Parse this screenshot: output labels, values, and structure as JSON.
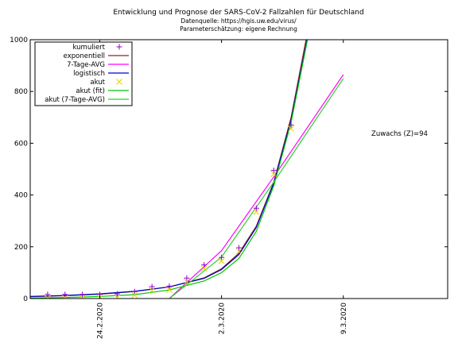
{
  "chart_data": {
    "type": "line",
    "title": "Entwicklung und Prognose der SARS-CoV-2 Fallzahlen für Deutschland",
    "subtitle_lines": [
      "Datenquelle: https://hgis.uw.edu/virus/",
      "Parameterschätzung: eigene Rechnung"
    ],
    "annotation": "Zuwachs (Z)=94",
    "xlim": [
      "2020-02-20",
      "2020-03-15"
    ],
    "ylim": [
      0,
      1000
    ],
    "y_ticks": [
      0,
      200,
      400,
      600,
      800,
      1000
    ],
    "x_ticks": [
      "24.2.2020",
      "2.3.2020",
      "9.3.2020"
    ],
    "legend_position": "top-left",
    "grid": false,
    "series": [
      {
        "name": "kumuliert",
        "style": "points",
        "marker": "plus",
        "color": "#9400d3",
        "x": [
          "2020-02-21",
          "2020-02-22",
          "2020-02-23",
          "2020-02-24",
          "2020-02-25",
          "2020-02-26",
          "2020-02-27",
          "2020-02-28",
          "2020-02-29",
          "2020-03-01",
          "2020-03-02",
          "2020-03-03",
          "2020-03-04",
          "2020-03-05",
          "2020-03-06"
        ],
        "y": [
          16,
          16,
          16,
          16,
          18,
          27,
          46,
          48,
          79,
          130,
          159,
          196,
          349,
          495,
          670
        ]
      },
      {
        "name": "exponentiell",
        "style": "line",
        "color": "#8b2a1a",
        "x": [
          "2020-02-20",
          "2020-02-22",
          "2020-02-24",
          "2020-02-26",
          "2020-02-28",
          "2020-03-01",
          "2020-03-02",
          "2020-03-03",
          "2020-03-04",
          "2020-03-05",
          "2020-03-06",
          "2020-03-07"
        ],
        "y": [
          7,
          11,
          17,
          27,
          45,
          80,
          115,
          175,
          280,
          450,
          700,
          1050
        ]
      },
      {
        "name": "7-Tage-AVG",
        "style": "line",
        "color": "#ff00ff",
        "x": [
          "2020-02-28",
          "2020-03-02",
          "2020-03-05",
          "2020-03-09"
        ],
        "y": [
          0,
          185,
          470,
          865
        ]
      },
      {
        "name": "logistisch",
        "style": "line",
        "color": "#0000cd",
        "x": [
          "2020-02-20",
          "2020-02-22",
          "2020-02-24",
          "2020-02-26",
          "2020-02-28",
          "2020-03-01",
          "2020-03-02",
          "2020-03-03",
          "2020-03-04",
          "2020-03-05",
          "2020-03-06",
          "2020-03-07"
        ],
        "y": [
          8,
          12,
          18,
          28,
          45,
          78,
          112,
          170,
          275,
          445,
          690,
          1030
        ]
      },
      {
        "name": "akut",
        "style": "points",
        "marker": "x",
        "color": "#e8d000",
        "x": [
          "2020-02-21",
          "2020-02-22",
          "2020-02-23",
          "2020-02-24",
          "2020-02-25",
          "2020-02-26",
          "2020-02-27",
          "2020-02-28",
          "2020-02-29",
          "2020-03-01",
          "2020-03-02",
          "2020-03-03",
          "2020-03-04",
          "2020-03-05",
          "2020-03-06"
        ],
        "y": [
          2,
          2,
          2,
          2,
          4,
          13,
          32,
          34,
          65,
          116,
          145,
          182,
          335,
          481,
          656
        ]
      },
      {
        "name": "akut (fit)",
        "style": "line",
        "color": "#00c800",
        "x": [
          "2020-02-20",
          "2020-02-22",
          "2020-02-24",
          "2020-02-26",
          "2020-02-28",
          "2020-03-01",
          "2020-03-02",
          "2020-03-03",
          "2020-03-04",
          "2020-03-05",
          "2020-03-06",
          "2020-03-07"
        ],
        "y": [
          2,
          4,
          8,
          15,
          33,
          68,
          100,
          155,
          260,
          435,
          680,
          1020
        ]
      },
      {
        "name": "akut (7-Tage-AVG)",
        "style": "line",
        "color": "#32cd32",
        "x": [
          "2020-02-28",
          "2020-03-02",
          "2020-03-05",
          "2020-03-09"
        ],
        "y": [
          0,
          160,
          450,
          850
        ]
      }
    ]
  }
}
